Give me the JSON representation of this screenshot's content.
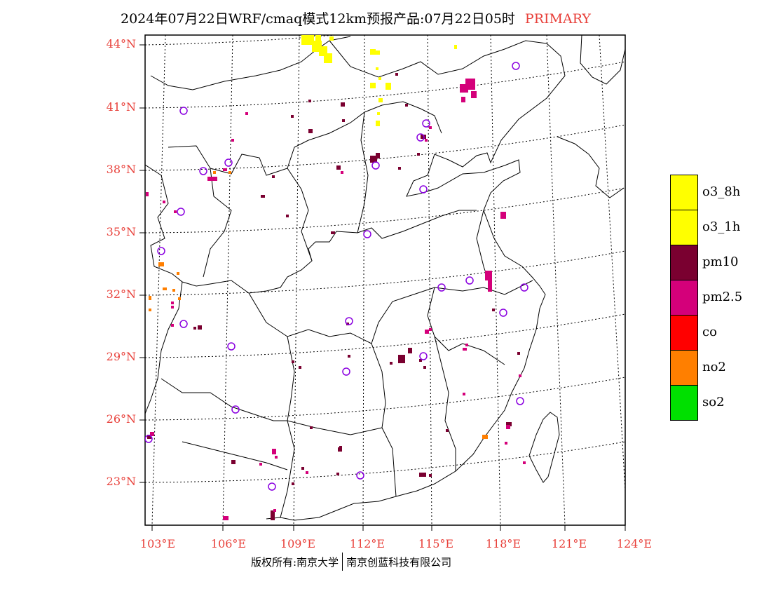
{
  "title": {
    "main": "2024年07月22日WRF/cmaq模式12km预报产品:07月22日05时",
    "tag": "PRIMARY"
  },
  "axes": {
    "lat_labels": [
      "44°N",
      "41°N",
      "38°N",
      "35°N",
      "32°N",
      "29°N",
      "26°N",
      "23°N"
    ],
    "lon_labels": [
      "103°E",
      "106°E",
      "109°E",
      "112°E",
      "115°E",
      "118°E",
      "121°E",
      "124°E"
    ]
  },
  "legend": {
    "items": [
      {
        "label": "o3_8h",
        "color": "#ffff00"
      },
      {
        "label": "o3_1h",
        "color": "#ffff00"
      },
      {
        "label": "pm10",
        "color": "#7a0030"
      },
      {
        "label": "pm2.5",
        "color": "#d4007a"
      },
      {
        "label": "co",
        "color": "#ff0000"
      },
      {
        "label": "no2",
        "color": "#ff7f00"
      },
      {
        "label": "so2",
        "color": "#00e000"
      }
    ]
  },
  "footer": {
    "left": "版权所有:南京大学",
    "right": "南京创蓝科技有限公司"
  },
  "colors": {
    "label_red": "#e8403a",
    "station_circle": "#8a00e0"
  }
}
